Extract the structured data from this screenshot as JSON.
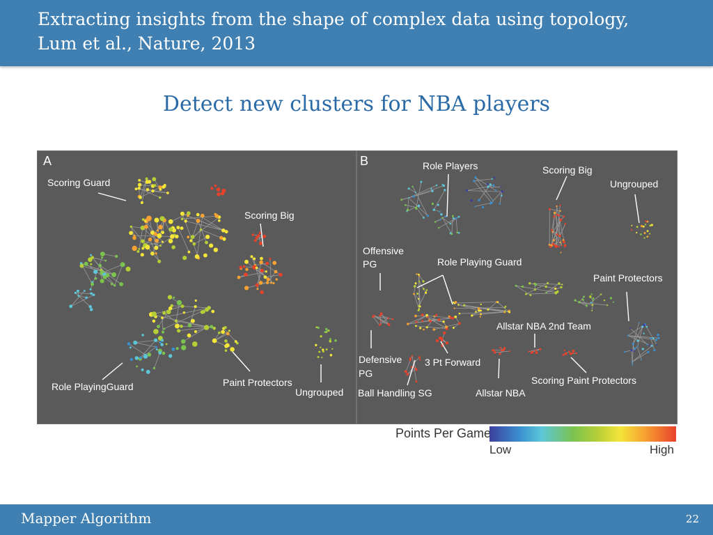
{
  "header": {
    "title_line1": "Extracting insights from the shape of complex data using topology,",
    "title_line2": "Lum et al., Nature, 2013"
  },
  "subtitle": "Detect new clusters for NBA players",
  "figure": {
    "panel_a": {
      "letter": "A",
      "labels": {
        "scoring_guard": "Scoring Guard",
        "scoring_big": "Scoring Big",
        "role_playing_guard": "Role PlayingGuard",
        "paint_protectors": "Paint Protectors",
        "ungrouped": "Ungrouped"
      }
    },
    "panel_b": {
      "letter": "B",
      "labels": {
        "role_players": "Role Players",
        "scoring_big": "Scoring Big",
        "ungrouped": "Ungrouped",
        "offensive_pg_1": "Offensive",
        "offensive_pg_2": "PG",
        "role_playing_guard": "Role Playing Guard",
        "paint_protectors": "Paint Protectors",
        "allstar_2nd": "Allstar NBA 2nd Team",
        "defensive_pg_1": "Defensive",
        "defensive_pg_2": "PG",
        "three_pt_forward": "3 Pt Forward",
        "ball_handling_sg": "Ball Handling SG",
        "allstar_nba": "Allstar NBA",
        "scoring_paint_protectors": "Scoring Paint Protectors"
      }
    }
  },
  "legend": {
    "title": "Points Per Game",
    "low": "Low",
    "high": "High",
    "colors": [
      "#3b3f9e",
      "#3a8fd0",
      "#5cc6d8",
      "#7bc34f",
      "#b6cf37",
      "#f4e53a",
      "#f7a232",
      "#e8422b"
    ]
  },
  "footer": {
    "left": "Mapper Algorithm",
    "page_number": "22"
  }
}
